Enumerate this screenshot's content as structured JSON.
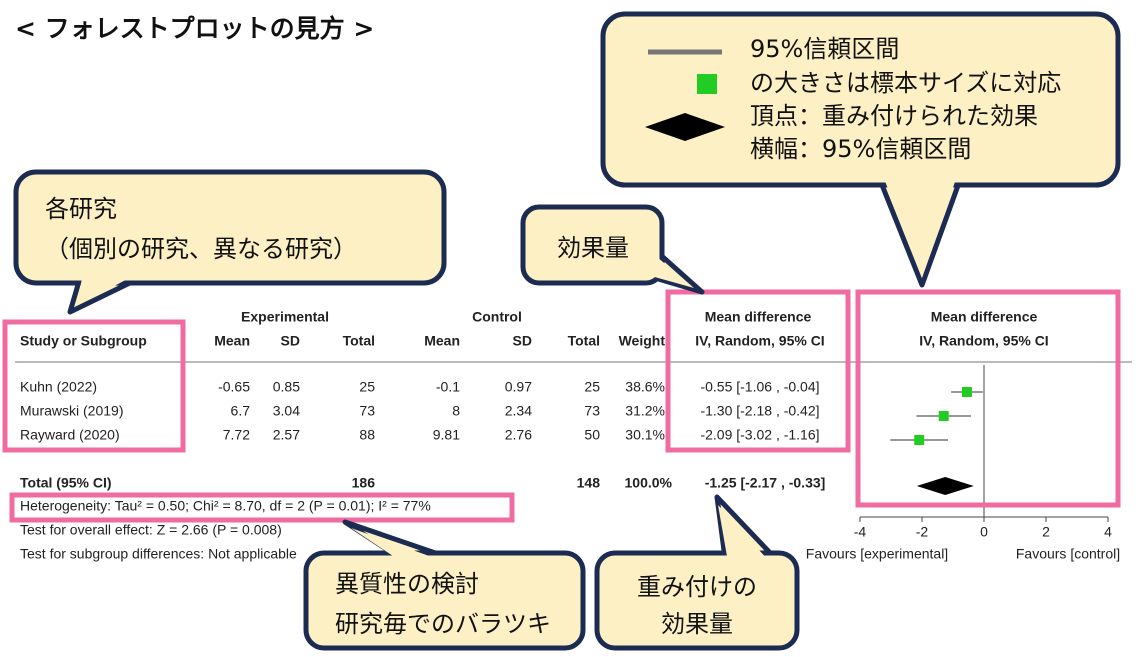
{
  "title": "< フォレストプロットの見方 >",
  "callouts": {
    "legend": [
      "95%信頼区間",
      "の大きさは標本サイズに対応",
      "頂点：重み付けられた効果",
      "横幅：95%信頼区間"
    ],
    "study": [
      "各研究",
      "（個別の研究、異なる研究）"
    ],
    "effect": "効果量",
    "heterogeneity": [
      "異質性の検討",
      "研究毎でのバラツキ"
    ],
    "weighted": [
      "重み付けの",
      "効果量"
    ]
  },
  "table": {
    "groups": [
      "Experimental",
      "Control"
    ],
    "columns": [
      "Study or Subgroup",
      "Mean",
      "SD",
      "Total",
      "Mean",
      "SD",
      "Total",
      "Weight",
      "IV, Random, 95% CI"
    ],
    "effect_header": "Mean difference",
    "rows": [
      {
        "cells": [
          "Kuhn (2022)",
          "-0.65",
          "0.85",
          "25",
          "-0.1",
          "0.97",
          "25",
          "38.6%",
          "-0.55 [-1.06 , -0.04]"
        ],
        "md": -0.55,
        "ci_low": -1.06,
        "ci_high": -0.04
      },
      {
        "cells": [
          "Murawski (2019)",
          "6.7",
          "3.04",
          "73",
          "8",
          "2.34",
          "73",
          "31.2%",
          "-1.30 [-2.18 , -0.42]"
        ],
        "md": -1.3,
        "ci_low": -2.18,
        "ci_high": -0.42
      },
      {
        "cells": [
          "Rayward (2020)",
          "7.72",
          "2.57",
          "88",
          "9.81",
          "2.76",
          "50",
          "30.1%",
          "-2.09 [-3.02 , -1.16]"
        ],
        "md": -2.09,
        "ci_low": -3.02,
        "ci_high": -1.16
      }
    ],
    "total": {
      "label": "Total (95% CI)",
      "exp_total": "186",
      "ctrl_total": "148",
      "weight": "100.0%",
      "effect_label": "-1.25 [-2.17 , -0.33]",
      "md": -1.25,
      "ci_low": -2.17,
      "ci_high": -0.33
    },
    "notes": [
      "Heterogeneity: Tau² = 0.50; Chi² = 8.70, df = 2 (P = 0.01); I² = 77%",
      "Test for overall effect: Z = 2.66 (P = 0.008)",
      "Test for subgroup differences: Not applicable"
    ]
  },
  "forest": {
    "header": [
      "Mean difference",
      "IV, Random, 95% CI"
    ],
    "xlim": [
      -4,
      4
    ],
    "xticks": [
      -4,
      -2,
      0,
      2,
      4
    ],
    "favours": [
      "Favours [experimental]",
      "Favours [control]"
    ],
    "marker_color": "#22cc22"
  }
}
